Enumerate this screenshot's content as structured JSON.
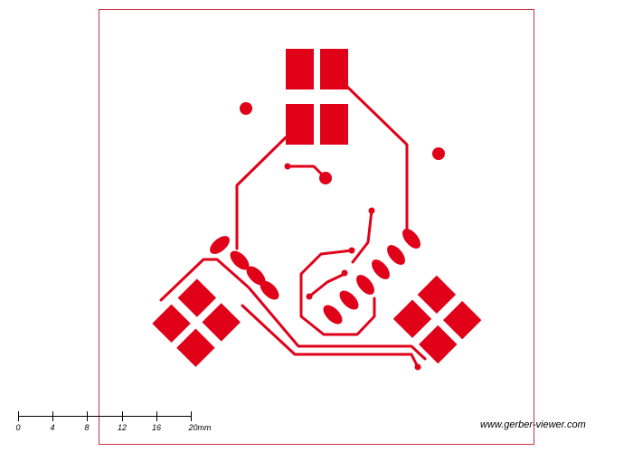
{
  "viewer": {
    "watermark": "www.gerber-viewer.com",
    "colors": {
      "background": "#ffffff",
      "board_outline": "#cc3344",
      "copper": "#e00018",
      "scale_bar": "#000000"
    }
  },
  "scale_bar": {
    "labels": [
      "0",
      "4",
      "8",
      "12",
      "16",
      "20mm"
    ]
  }
}
